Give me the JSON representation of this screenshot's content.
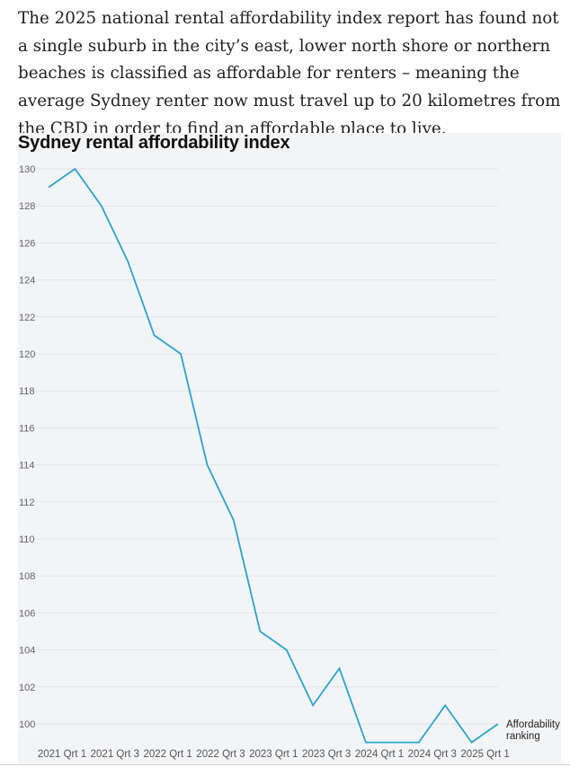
{
  "article": {
    "paragraph": "The 2025 national rental affordability index report has found not a single suburb in the city’s east, lower north shore or northern beaches is classified as affordable for renters – meaning the average Sydney renter now must travel up to 20 kilometres from the CBD in order to find an affordable place to live."
  },
  "colors": {
    "line": "#2aa4cc",
    "grid": "#e2e4e8",
    "panel": "#f3f4f6"
  },
  "chart_data": {
    "type": "line",
    "title": "Sydney rental affordability index",
    "xlabel": "",
    "ylabel": "",
    "ylim": [
      100,
      130
    ],
    "yticks": [
      100,
      102,
      104,
      106,
      108,
      110,
      112,
      114,
      116,
      118,
      120,
      122,
      124,
      126,
      128,
      130
    ],
    "x_tick_labels": [
      "2021 Qrt 1",
      "2021 Qrt 3",
      "2022 Qrt 1",
      "2022 Qrt 3",
      "2023 Qrt 1",
      "2023 Qrt 3",
      "2024 Qrt 1",
      "2024 Qrt 3",
      "2025 Qrt 1"
    ],
    "x_tick_every": 2,
    "series": [
      {
        "name": "Affordability ranking",
        "legend_lines": [
          "Affordability",
          "ranking"
        ],
        "values": [
          129,
          130,
          128,
          125,
          121,
          120,
          114,
          111,
          105,
          104,
          101,
          103,
          99,
          99,
          99,
          101,
          99,
          100
        ]
      }
    ],
    "grid": true,
    "legend": "right-end-of-line"
  }
}
